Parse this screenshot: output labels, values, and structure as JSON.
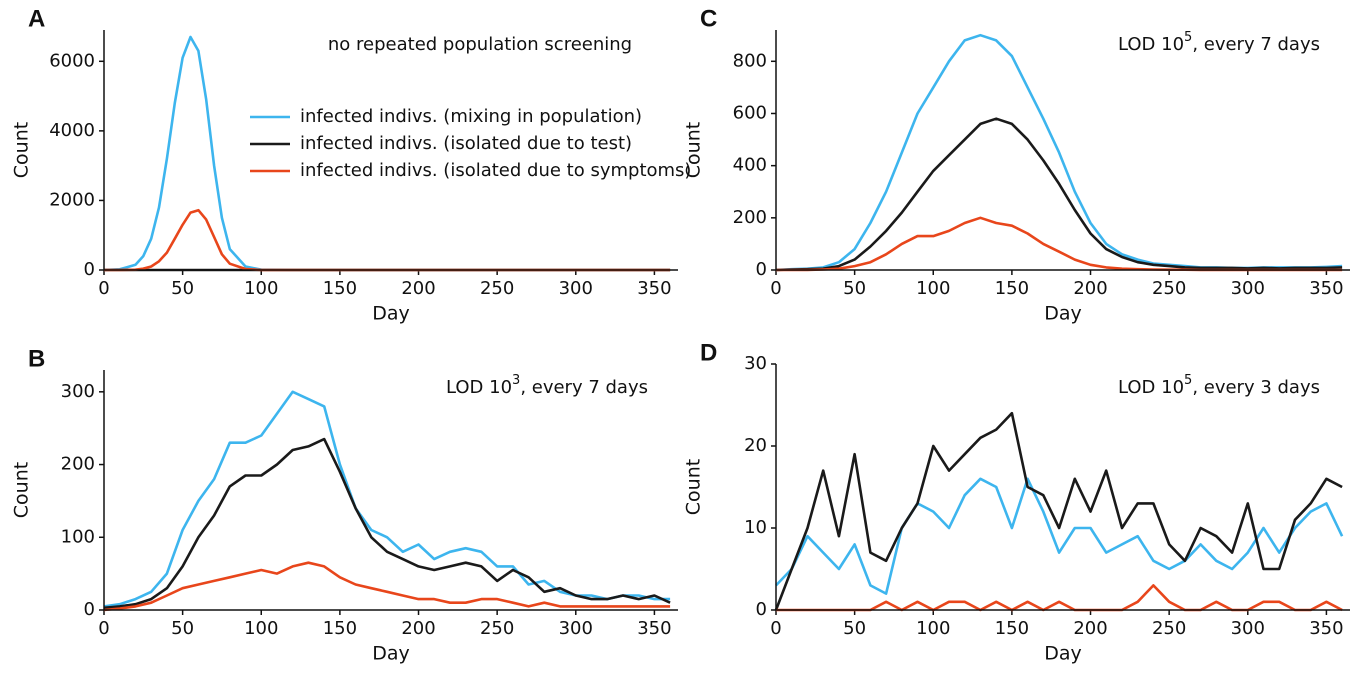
{
  "chart_data": [
    {
      "type": "line",
      "panel_label": "A",
      "annotation": "no repeated population screening",
      "xlabel": "Day",
      "ylabel": "Count",
      "legend": true,
      "x": [
        0,
        10,
        20,
        25,
        30,
        35,
        40,
        45,
        50,
        55,
        60,
        65,
        70,
        75,
        80,
        90,
        100,
        120,
        140,
        160,
        180,
        200,
        220,
        240,
        260,
        280,
        300,
        320,
        340,
        360
      ],
      "xlim": [
        0,
        365
      ],
      "xticks": [
        0,
        50,
        100,
        150,
        200,
        250,
        300,
        350
      ],
      "ylim": [
        0,
        6900
      ],
      "yticks": [
        0,
        2000,
        4000,
        6000
      ],
      "series": [
        {
          "name": "infected indivs. (mixing in population)",
          "color": "#3db5ee",
          "values": [
            0,
            20,
            150,
            400,
            900,
            1800,
            3200,
            4800,
            6100,
            6700,
            6300,
            4900,
            3000,
            1500,
            600,
            100,
            10,
            0,
            0,
            0,
            0,
            0,
            0,
            0,
            0,
            0,
            0,
            0,
            0,
            0
          ]
        },
        {
          "name": "infected indivs. (isolated due to test)",
          "color": "#1a1a1a",
          "values": [
            0,
            0,
            0,
            0,
            0,
            0,
            0,
            0,
            0,
            0,
            0,
            0,
            0,
            0,
            0,
            0,
            0,
            0,
            0,
            0,
            0,
            0,
            0,
            0,
            0,
            0,
            0,
            0,
            0,
            0
          ]
        },
        {
          "name": "infected indivs. (isolated due to symptoms)",
          "color": "#e8461b",
          "values": [
            0,
            0,
            10,
            40,
            100,
            250,
            500,
            900,
            1300,
            1650,
            1720,
            1450,
            950,
            450,
            180,
            30,
            0,
            0,
            0,
            0,
            0,
            0,
            0,
            0,
            0,
            0,
            0,
            0,
            0,
            0
          ]
        }
      ]
    },
    {
      "type": "line",
      "panel_label": "C",
      "annotation": "LOD 10",
      "annotation_sup": "5",
      "annotation_end": ", every 7 days",
      "xlabel": "Day",
      "ylabel": "Count",
      "legend": false,
      "x": [
        0,
        10,
        20,
        30,
        40,
        50,
        60,
        70,
        80,
        90,
        100,
        110,
        120,
        130,
        140,
        150,
        160,
        170,
        180,
        190,
        200,
        210,
        220,
        230,
        240,
        250,
        260,
        270,
        280,
        290,
        300,
        310,
        320,
        330,
        340,
        350,
        360
      ],
      "xlim": [
        0,
        365
      ],
      "xticks": [
        0,
        50,
        100,
        150,
        200,
        250,
        300,
        350
      ],
      "ylim": [
        0,
        920
      ],
      "yticks": [
        0,
        200,
        400,
        600,
        800
      ],
      "series": [
        {
          "color": "#3db5ee",
          "values": [
            0,
            3,
            5,
            10,
            30,
            80,
            180,
            300,
            450,
            600,
            700,
            800,
            880,
            900,
            880,
            820,
            700,
            580,
            450,
            300,
            180,
            100,
            60,
            40,
            25,
            20,
            15,
            10,
            10,
            8,
            8,
            10,
            10,
            10,
            10,
            12,
            15
          ]
        },
        {
          "color": "#1a1a1a",
          "values": [
            0,
            2,
            3,
            5,
            15,
            40,
            90,
            150,
            220,
            300,
            380,
            440,
            500,
            560,
            580,
            560,
            500,
            420,
            330,
            230,
            140,
            80,
            50,
            30,
            20,
            15,
            10,
            8,
            8,
            8,
            6,
            8,
            6,
            8,
            8,
            8,
            10
          ]
        },
        {
          "color": "#e8461b",
          "values": [
            0,
            0,
            0,
            2,
            5,
            15,
            30,
            60,
            100,
            130,
            130,
            150,
            180,
            200,
            180,
            170,
            140,
            100,
            70,
            40,
            20,
            10,
            5,
            3,
            2,
            1,
            1,
            0,
            0,
            0,
            0,
            0,
            0,
            0,
            0,
            0,
            0
          ]
        }
      ]
    },
    {
      "type": "line",
      "panel_label": "B",
      "annotation": "LOD 10",
      "annotation_sup": "3",
      "annotation_end": ", every 7 days",
      "xlabel": "Day",
      "ylabel": "Count",
      "legend": false,
      "x": [
        0,
        10,
        20,
        30,
        40,
        50,
        60,
        70,
        80,
        90,
        100,
        110,
        120,
        130,
        140,
        150,
        160,
        170,
        180,
        190,
        200,
        210,
        220,
        230,
        240,
        250,
        260,
        270,
        280,
        290,
        300,
        310,
        320,
        330,
        340,
        350,
        360
      ],
      "xlim": [
        0,
        365
      ],
      "xticks": [
        0,
        50,
        100,
        150,
        200,
        250,
        300,
        350
      ],
      "ylim": [
        0,
        330
      ],
      "yticks": [
        0,
        100,
        200,
        300
      ],
      "series": [
        {
          "color": "#3db5ee",
          "values": [
            5,
            8,
            15,
            25,
            50,
            110,
            150,
            180,
            230,
            230,
            240,
            270,
            300,
            290,
            280,
            200,
            140,
            110,
            100,
            80,
            90,
            70,
            80,
            85,
            80,
            60,
            60,
            35,
            40,
            25,
            20,
            20,
            15,
            20,
            20,
            15,
            15
          ]
        },
        {
          "color": "#1a1a1a",
          "values": [
            3,
            5,
            8,
            15,
            30,
            60,
            100,
            130,
            170,
            185,
            185,
            200,
            220,
            225,
            235,
            190,
            140,
            100,
            80,
            70,
            60,
            55,
            60,
            65,
            60,
            40,
            55,
            45,
            25,
            30,
            20,
            15,
            15,
            20,
            15,
            20,
            10
          ]
        },
        {
          "color": "#e8461b",
          "values": [
            0,
            2,
            5,
            10,
            20,
            30,
            35,
            40,
            45,
            50,
            55,
            50,
            60,
            65,
            60,
            45,
            35,
            30,
            25,
            20,
            15,
            15,
            10,
            10,
            15,
            15,
            10,
            5,
            10,
            5,
            5,
            5,
            5,
            5,
            5,
            5,
            5
          ]
        }
      ]
    },
    {
      "type": "line",
      "panel_label": "D",
      "annotation": "LOD 10",
      "annotation_sup": "5",
      "annotation_end": ", every 3 days",
      "xlabel": "Day",
      "ylabel": "Count",
      "legend": false,
      "x": [
        0,
        10,
        20,
        30,
        40,
        50,
        60,
        70,
        80,
        90,
        100,
        110,
        120,
        130,
        140,
        150,
        160,
        170,
        180,
        190,
        200,
        210,
        220,
        230,
        240,
        250,
        260,
        270,
        280,
        290,
        300,
        310,
        320,
        330,
        340,
        350,
        360
      ],
      "xlim": [
        0,
        365
      ],
      "xticks": [
        0,
        50,
        100,
        150,
        200,
        250,
        300,
        350
      ],
      "ylim": [
        0,
        30
      ],
      "yticks": [
        0,
        10,
        20,
        30
      ],
      "series": [
        {
          "color": "#3db5ee",
          "values": [
            3,
            5,
            9,
            7,
            5,
            8,
            3,
            2,
            10,
            13,
            12,
            10,
            14,
            16,
            15,
            10,
            16,
            12,
            7,
            10,
            10,
            7,
            8,
            9,
            6,
            5,
            6,
            8,
            6,
            5,
            7,
            10,
            7,
            10,
            12,
            13,
            9
          ]
        },
        {
          "color": "#1a1a1a",
          "values": [
            0,
            5,
            10,
            17,
            9,
            19,
            7,
            6,
            10,
            13,
            20,
            17,
            19,
            21,
            22,
            24,
            15,
            14,
            10,
            16,
            12,
            17,
            10,
            13,
            13,
            8,
            6,
            10,
            9,
            7,
            13,
            5,
            5,
            11,
            13,
            16,
            15
          ]
        },
        {
          "color": "#e8461b",
          "values": [
            0,
            0,
            0,
            0,
            0,
            0,
            0,
            1,
            0,
            1,
            0,
            1,
            1,
            0,
            1,
            0,
            1,
            0,
            1,
            0,
            0,
            0,
            0,
            1,
            3,
            1,
            0,
            0,
            1,
            0,
            0,
            1,
            1,
            0,
            0,
            1,
            0
          ]
        }
      ]
    }
  ]
}
